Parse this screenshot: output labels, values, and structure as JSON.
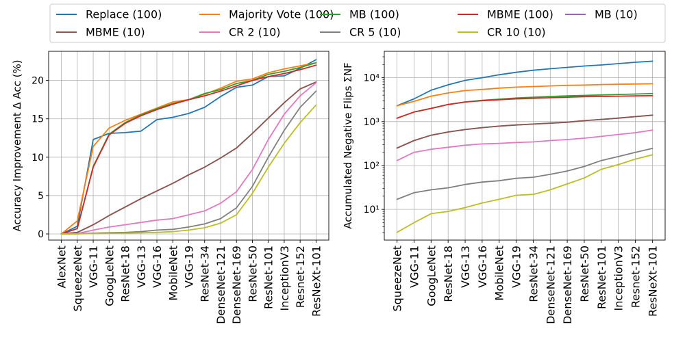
{
  "chart_data": [
    {
      "type": "line",
      "categories": [
        "AlexNet",
        "SqueezeNet",
        "VGG-11",
        "GoogLeNet",
        "ResNet-18",
        "VGG-13",
        "VGG-16",
        "MobileNet",
        "VGG-19",
        "ResNet-34",
        "DenseNet-121",
        "DenseNet-169",
        "ResNet-50",
        "ResNet-101",
        "InceptionV3",
        "Resnet-152",
        "ResNeXt-101"
      ],
      "ylabel": "Accuracy Improvement Δ Acc (%)",
      "xlabel": "",
      "ylim": [
        -0.8,
        23.8
      ],
      "yticks": [
        0,
        5,
        10,
        15,
        20
      ],
      "yscale": "linear",
      "grid": true,
      "series": [
        {
          "name": "Replace (100)",
          "color": "#1f77b4",
          "values": [
            0,
            1.0,
            12.3,
            13.1,
            13.2,
            13.4,
            14.9,
            15.2,
            15.7,
            16.5,
            17.9,
            19.1,
            19.4,
            20.5,
            20.6,
            21.6,
            22.7
          ]
        },
        {
          "name": "Majority Vote (100)",
          "color": "#ff7f0e",
          "values": [
            0,
            1.7,
            11.4,
            13.8,
            14.8,
            15.6,
            16.4,
            17.2,
            17.5,
            18.2,
            19.0,
            19.9,
            20.2,
            21.0,
            21.5,
            21.9,
            22.3
          ]
        },
        {
          "name": "MB (100)",
          "color": "#2ca02c",
          "values": [
            0,
            0.7,
            8.8,
            13.0,
            14.5,
            15.5,
            16.3,
            17.0,
            17.5,
            18.3,
            18.8,
            19.6,
            20.0,
            20.8,
            21.2,
            21.7,
            22.3
          ]
        },
        {
          "name": "MBME (100)",
          "color": "#d62728",
          "values": [
            0,
            0.7,
            8.7,
            12.9,
            14.4,
            15.4,
            16.2,
            16.9,
            17.5,
            18.0,
            18.6,
            19.3,
            20.0,
            20.5,
            20.9,
            21.4,
            22.0
          ]
        },
        {
          "name": "MB (10)",
          "color": "#9467bd",
          "values": [
            0,
            0.2,
            1.2,
            2.4,
            3.5,
            4.6,
            5.6,
            6.6,
            7.7,
            8.7,
            9.9,
            11.2,
            13.1,
            15.1,
            17.1,
            18.9,
            19.8
          ]
        },
        {
          "name": "MBME (10)",
          "color": "#8c564b",
          "values": [
            0,
            0.2,
            1.2,
            2.4,
            3.5,
            4.6,
            5.6,
            6.6,
            7.7,
            8.7,
            9.9,
            11.2,
            13.1,
            15.1,
            17.1,
            18.9,
            19.8
          ]
        },
        {
          "name": "CR 2 (10)",
          "color": "#e377c2",
          "values": [
            0,
            0.05,
            0.5,
            0.9,
            1.2,
            1.5,
            1.8,
            2.0,
            2.5,
            3.0,
            4.0,
            5.5,
            8.4,
            12.3,
            15.6,
            18.0,
            19.7
          ]
        },
        {
          "name": "CR 5 (10)",
          "color": "#7f7f7f",
          "values": [
            0,
            0.02,
            0.1,
            0.15,
            0.2,
            0.3,
            0.5,
            0.6,
            0.9,
            1.3,
            2.0,
            3.4,
            6.2,
            10.0,
            13.5,
            16.5,
            18.6
          ]
        },
        {
          "name": "CR 10 (10)",
          "color": "#bcbd22",
          "values": [
            0,
            0.01,
            0.05,
            0.08,
            0.1,
            0.15,
            0.2,
            0.3,
            0.5,
            0.8,
            1.4,
            2.5,
            5.3,
            8.7,
            11.8,
            14.5,
            16.8
          ]
        }
      ]
    },
    {
      "type": "line",
      "categories": [
        "SqueezeNet",
        "VGG-11",
        "GoogLeNet",
        "ResNet-18",
        "VGG-13",
        "VGG-16",
        "MobileNet",
        "VGG-19",
        "ResNet-34",
        "DenseNet-121",
        "DenseNet-169",
        "ResNet-50",
        "ResNet-101",
        "InceptionV3",
        "Resnet-152",
        "ResNeXt-101"
      ],
      "ylabel": "Accumulated Negative Flips ΣNF",
      "xlabel": "",
      "yscale": "log",
      "ylim": [
        2.0,
        40000
      ],
      "yticks": [
        10,
        100,
        1000,
        10000
      ],
      "ytick_labels": [
        "10¹",
        "10²",
        "10³",
        "10⁴"
      ],
      "grid": true,
      "series": [
        {
          "name": "Replace (100)",
          "color": "#1f77b4",
          "values": [
            2300,
            3300,
            5200,
            6900,
            8700,
            10000,
            11700,
            13300,
            14800,
            16000,
            17200,
            18500,
            19500,
            21000,
            22500,
            23800
          ]
        },
        {
          "name": "Majority Vote (100)",
          "color": "#ff7f0e",
          "values": [
            2300,
            2900,
            3800,
            4500,
            5100,
            5400,
            5800,
            6100,
            6300,
            6500,
            6700,
            6800,
            7000,
            7100,
            7200,
            7300
          ]
        },
        {
          "name": "MB (100)",
          "color": "#2ca02c",
          "values": [
            1200,
            1650,
            2000,
            2450,
            2800,
            3050,
            3250,
            3450,
            3600,
            3750,
            3850,
            3950,
            4050,
            4150,
            4250,
            4350
          ]
        },
        {
          "name": "MBME (100)",
          "color": "#d62728",
          "values": [
            1200,
            1650,
            2000,
            2450,
            2800,
            3000,
            3150,
            3300,
            3400,
            3500,
            3600,
            3700,
            3750,
            3800,
            3850,
            3900
          ]
        },
        {
          "name": "MB (10)",
          "color": "#9467bd",
          "values": [
            250,
            370,
            490,
            580,
            660,
            730,
            790,
            840,
            880,
            920,
            970,
            1050,
            1120,
            1200,
            1300,
            1400
          ]
        },
        {
          "name": "MBME (10)",
          "color": "#8c564b",
          "values": [
            250,
            370,
            490,
            580,
            660,
            730,
            790,
            840,
            880,
            920,
            970,
            1050,
            1120,
            1200,
            1300,
            1400
          ]
        },
        {
          "name": "CR 2 (10)",
          "color": "#e377c2",
          "values": [
            130,
            200,
            235,
            260,
            290,
            310,
            320,
            335,
            345,
            370,
            390,
            420,
            460,
            510,
            560,
            640
          ]
        },
        {
          "name": "CR 5 (10)",
          "color": "#7f7f7f",
          "values": [
            17,
            24,
            28,
            31,
            37,
            42,
            45,
            51,
            54,
            63,
            75,
            95,
            130,
            160,
            200,
            245
          ]
        },
        {
          "name": "CR 10 (10)",
          "color": "#bcbd22",
          "values": [
            3,
            5,
            8,
            9,
            11,
            14,
            17,
            21,
            22,
            28,
            38,
            52,
            82,
            105,
            140,
            175
          ]
        }
      ]
    }
  ],
  "legend": {
    "placement": "top-center",
    "columns": 5,
    "entries": [
      {
        "label": "Replace (100)",
        "color": "#1f77b4"
      },
      {
        "label": "Majority Vote (100)",
        "color": "#ff7f0e"
      },
      {
        "label": "MB (100)",
        "color": "#2ca02c"
      },
      {
        "label": "MBME (100)",
        "color": "#d62728"
      },
      {
        "label": "MB (10)",
        "color": "#9467bd"
      },
      {
        "label": "MBME (10)",
        "color": "#8c564b"
      },
      {
        "label": "CR 2 (10)",
        "color": "#e377c2"
      },
      {
        "label": "CR 5 (10)",
        "color": "#7f7f7f"
      },
      {
        "label": "CR 10 (10)",
        "color": "#bcbd22"
      }
    ]
  }
}
